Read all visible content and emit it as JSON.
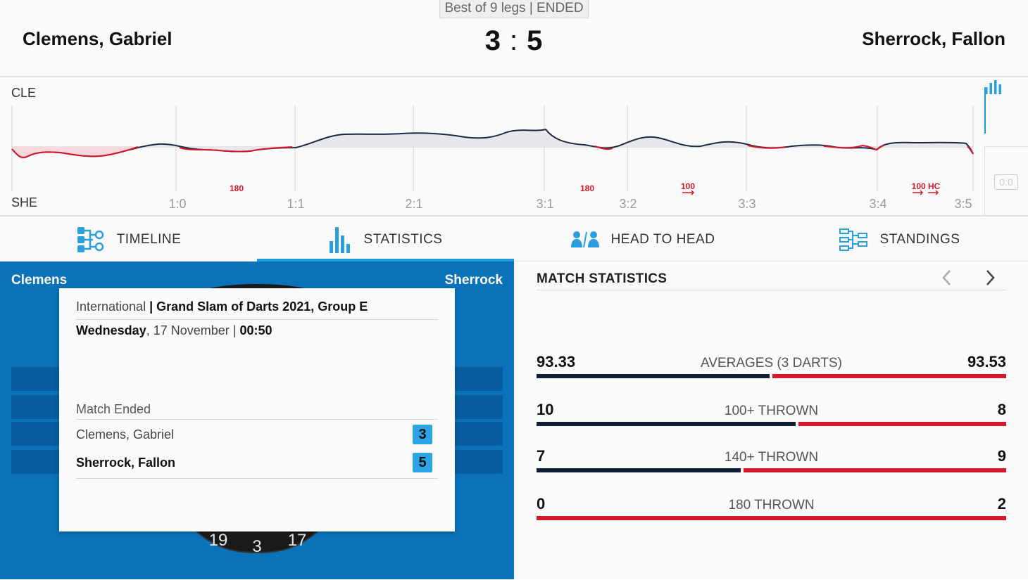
{
  "header": {
    "format": "Best of 9 legs | ENDED",
    "player_left": "Clemens, Gabriel",
    "player_right": "Sherrock, Fallon",
    "score_left": "3",
    "score_sep": ":",
    "score_right": "5"
  },
  "momentum": {
    "top_label": "CLE",
    "bottom_label": "SHE",
    "leg_marks": [
      "1:0",
      "1:1",
      "2:1",
      "3:1",
      "3:2",
      "3:3",
      "3:4",
      "3:5"
    ],
    "events": [
      "180",
      "180",
      "100",
      "100 HC"
    ],
    "zero_badge": "0:0",
    "colors": {
      "cle": "#0f1e35",
      "she": "#d3182b"
    }
  },
  "tabs": [
    {
      "label": "TIMELINE",
      "icon": "timeline-icon"
    },
    {
      "label": "STATISTICS",
      "icon": "statistics-icon",
      "active": true
    },
    {
      "label": "HEAD TO HEAD",
      "icon": "head-to-head-icon"
    },
    {
      "label": "STANDINGS",
      "icon": "standings-icon"
    }
  ],
  "board_panel": {
    "left_name": "Clemens",
    "right_name": "Sherrock",
    "board_numbers": [
      "19",
      "3",
      "17"
    ]
  },
  "match_info": {
    "category": "International",
    "competition": "Grand Slam of Darts 2021, Group E",
    "weekday": "Wednesday",
    "date": ", 17 November | ",
    "time": "00:50",
    "status": "Match Ended",
    "player1": "Clemens, Gabriel",
    "player1_score": "3",
    "player2": "Sherrock, Fallon",
    "player2_score": "5"
  },
  "match_statistics": {
    "title": "MATCH STATISTICS",
    "rows": [
      {
        "label": "AVERAGES (3 DARTS)",
        "left": "93.33",
        "right": "93.53"
      },
      {
        "label": "100+ THROWN",
        "left": "10",
        "right": "8"
      },
      {
        "label": "140+ THROWN",
        "left": "7",
        "right": "9"
      },
      {
        "label": "180 THROWN",
        "left": "0",
        "right": "2"
      }
    ]
  }
}
